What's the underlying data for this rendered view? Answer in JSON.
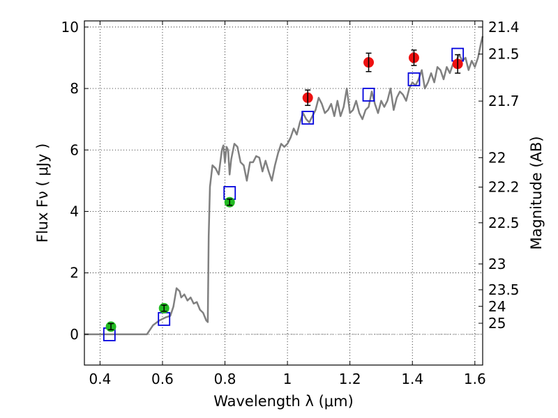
{
  "chart_data": {
    "type": "scatter",
    "xlabel": "Wavelength  λ (μm)",
    "ylabel": "Flux  Fν  ( μJy )",
    "y2label": "Magnitude (AB)",
    "xlim": [
      0.35,
      1.625
    ],
    "ylim": [
      -1.0,
      10.2
    ],
    "grid": true,
    "grid_style": "dotted",
    "x_ticks": [
      {
        "value": 0.4,
        "label": "0.4"
      },
      {
        "value": 0.6,
        "label": "0.6"
      },
      {
        "value": 0.8,
        "label": "0.8"
      },
      {
        "value": 1.0,
        "label": "1"
      },
      {
        "value": 1.2,
        "label": "1.2"
      },
      {
        "value": 1.4,
        "label": "1.4"
      },
      {
        "value": 1.6,
        "label": "1.6"
      }
    ],
    "y_ticks": [
      {
        "value": 0,
        "label": "0"
      },
      {
        "value": 2,
        "label": "2"
      },
      {
        "value": 4,
        "label": "4"
      },
      {
        "value": 6,
        "label": "6"
      },
      {
        "value": 8,
        "label": "8"
      },
      {
        "value": 10,
        "label": "10"
      }
    ],
    "y2_ticks": [
      {
        "flux": 10.0,
        "label": "21.4"
      },
      {
        "flux": 9.12,
        "label": "21.5"
      },
      {
        "flux": 7.59,
        "label": "21.7"
      },
      {
        "flux": 5.75,
        "label": "22"
      },
      {
        "flux": 4.79,
        "label": "22.2"
      },
      {
        "flux": 3.63,
        "label": "22.5"
      },
      {
        "flux": 2.29,
        "label": "23"
      },
      {
        "flux": 1.45,
        "label": "23.5"
      },
      {
        "flux": 0.91,
        "label": "24"
      },
      {
        "flux": 0.36,
        "label": "25"
      }
    ],
    "series": [
      {
        "kind": "line",
        "color": "#808080",
        "x": [
          0.35,
          0.55,
          0.57,
          0.59,
          0.61,
          0.625,
          0.635,
          0.645,
          0.655,
          0.66,
          0.67,
          0.68,
          0.69,
          0.7,
          0.71,
          0.72,
          0.73,
          0.74,
          0.745,
          0.748,
          0.752,
          0.76,
          0.77,
          0.78,
          0.79,
          0.795,
          0.8,
          0.805,
          0.81,
          0.815,
          0.82,
          0.83,
          0.84,
          0.85,
          0.86,
          0.87,
          0.88,
          0.89,
          0.9,
          0.91,
          0.92,
          0.93,
          0.94,
          0.95,
          0.96,
          0.97,
          0.98,
          0.99,
          1.0,
          1.01,
          1.02,
          1.03,
          1.04,
          1.05,
          1.06,
          1.07,
          1.08,
          1.09,
          1.1,
          1.11,
          1.12,
          1.13,
          1.14,
          1.15,
          1.16,
          1.17,
          1.18,
          1.19,
          1.2,
          1.21,
          1.22,
          1.23,
          1.24,
          1.25,
          1.26,
          1.27,
          1.28,
          1.29,
          1.3,
          1.31,
          1.32,
          1.33,
          1.34,
          1.35,
          1.36,
          1.37,
          1.38,
          1.39,
          1.4,
          1.41,
          1.42,
          1.43,
          1.44,
          1.45,
          1.46,
          1.47,
          1.48,
          1.49,
          1.5,
          1.51,
          1.52,
          1.53,
          1.54,
          1.55,
          1.56,
          1.57,
          1.58,
          1.59,
          1.6,
          1.61,
          1.62,
          1.625
        ],
        "values": [
          0.0,
          0.0,
          0.3,
          0.45,
          0.55,
          0.6,
          0.9,
          1.5,
          1.4,
          1.2,
          1.3,
          1.1,
          1.2,
          1.0,
          1.05,
          0.8,
          0.7,
          0.45,
          0.4,
          3.2,
          4.8,
          5.5,
          5.4,
          5.2,
          6.0,
          6.15,
          5.6,
          6.1,
          6.0,
          5.2,
          5.7,
          6.2,
          6.1,
          5.6,
          5.5,
          5.0,
          5.6,
          5.6,
          5.8,
          5.75,
          5.3,
          5.65,
          5.3,
          5.0,
          5.5,
          5.9,
          6.2,
          6.1,
          6.2,
          6.4,
          6.7,
          6.5,
          6.9,
          7.2,
          7.0,
          6.9,
          7.1,
          7.3,
          7.7,
          7.5,
          7.2,
          7.3,
          7.5,
          7.1,
          7.6,
          7.1,
          7.4,
          8.0,
          7.2,
          7.3,
          7.6,
          7.2,
          7.0,
          7.3,
          7.4,
          7.9,
          7.5,
          7.2,
          7.6,
          7.4,
          7.6,
          8.0,
          7.3,
          7.7,
          7.9,
          7.8,
          7.6,
          8.0,
          8.2,
          8.1,
          8.3,
          8.6,
          8.0,
          8.2,
          8.5,
          8.2,
          8.7,
          8.6,
          8.3,
          8.7,
          8.5,
          8.8,
          8.9,
          9.1,
          8.9,
          9.0,
          8.6,
          8.9,
          8.7,
          9.0,
          9.5,
          9.7
        ]
      },
      {
        "kind": "model_boxes",
        "color": "#0000dd",
        "x": [
          0.43,
          0.605,
          0.815,
          1.065,
          1.26,
          1.405,
          1.545
        ],
        "values": [
          0.0,
          0.5,
          4.6,
          7.05,
          7.8,
          8.3,
          9.1
        ]
      },
      {
        "kind": "points",
        "color": "#22bb22",
        "x": [
          0.435,
          0.605,
          0.815
        ],
        "values": [
          0.25,
          0.85,
          4.3
        ],
        "errors": [
          0.1,
          0.1,
          0.1
        ]
      },
      {
        "kind": "points",
        "color": "#ee1111",
        "x": [
          1.065,
          1.26,
          1.405,
          1.545
        ],
        "values": [
          7.7,
          8.85,
          9.0,
          8.8
        ],
        "errors": [
          0.25,
          0.3,
          0.25,
          0.3
        ]
      }
    ]
  }
}
